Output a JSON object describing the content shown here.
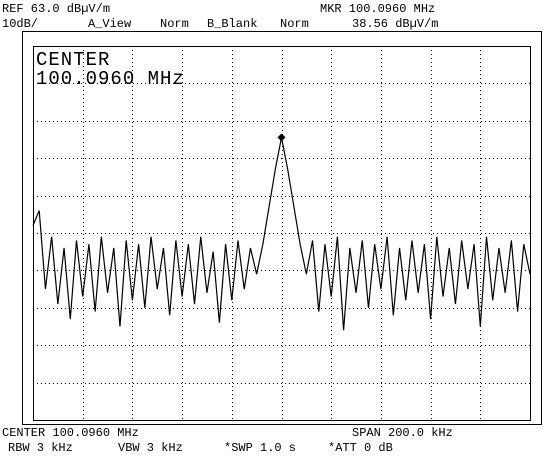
{
  "header": {
    "ref": "REF 63.0 dBµV/m",
    "mkr_freq": "MKR 100.0960 MHz",
    "scale": "10dB/",
    "a_view": "A_View",
    "a_mode": "Norm",
    "b_blank": "B_Blank",
    "b_mode": "Norm",
    "mkr_level": "38.56 dBµV/m"
  },
  "footer": {
    "center": "CENTER 100.0960 MHz",
    "span": "SPAN 200.0 kHz",
    "rbw": "RBW 3 kHz",
    "vbw": "VBW 3 kHz",
    "swp": "*SWP 1.0 s",
    "att": "*ATT 0 dB"
  },
  "chart_data": {
    "type": "line",
    "title": "CENTER",
    "subtitle": "100.0960 MHz",
    "color": "#000000",
    "grid": true,
    "xlim": [
      99.996,
      100.196
    ],
    "ylim": [
      -37,
      63
    ],
    "xticks": [
      100.016,
      100.036,
      100.056,
      100.076,
      100.096,
      100.116,
      100.136,
      100.156,
      100.176
    ],
    "yticks": [
      -27,
      -17,
      -7,
      3,
      13,
      23,
      33,
      43,
      53
    ],
    "x": [
      99.996,
      99.9985,
      100.001,
      100.0035,
      100.006,
      100.0085,
      100.011,
      100.0135,
      100.016,
      100.0185,
      100.021,
      100.0235,
      100.026,
      100.0285,
      100.031,
      100.0335,
      100.036,
      100.0385,
      100.041,
      100.0435,
      100.046,
      100.0485,
      100.051,
      100.0535,
      100.056,
      100.0585,
      100.061,
      100.0635,
      100.066,
      100.0685,
      100.071,
      100.0735,
      100.076,
      100.0785,
      100.081,
      100.0835,
      100.086,
      100.0885,
      100.091,
      100.0935,
      100.096,
      100.0985,
      100.101,
      100.1035,
      100.106,
      100.1085,
      100.111,
      100.1135,
      100.116,
      100.1185,
      100.121,
      100.1235,
      100.126,
      100.1285,
      100.131,
      100.1335,
      100.136,
      100.1385,
      100.141,
      100.1435,
      100.146,
      100.1485,
      100.151,
      100.1535,
      100.156,
      100.1585,
      100.161,
      100.1635,
      100.166,
      100.1685,
      100.171,
      100.1735,
      100.176,
      100.1785,
      100.181,
      100.1835,
      100.186,
      100.1885,
      100.191,
      100.1935,
      100.196
    ],
    "values": [
      15,
      19,
      -2,
      12,
      -6,
      9,
      -10,
      11,
      -4,
      10,
      -8,
      12,
      -3,
      9,
      -12,
      11,
      -5,
      10,
      -7,
      12,
      -2,
      9,
      -9,
      11,
      -4,
      10,
      -6,
      12,
      -3,
      8,
      -11,
      10,
      -5,
      11,
      -2,
      9,
      2,
      10,
      20,
      30,
      38.56,
      30,
      20,
      10,
      2,
      11,
      -8,
      10,
      -4,
      12,
      -13,
      9,
      -3,
      11,
      -7,
      10,
      -2,
      12,
      -9,
      9,
      -5,
      11,
      -3,
      10,
      -10,
      12,
      -4,
      9,
      -6,
      11,
      -2,
      10,
      -12,
      12,
      -5,
      9,
      -3,
      11,
      -8,
      10,
      2
    ],
    "marker": {
      "x": 100.096,
      "y": 38.56
    }
  }
}
